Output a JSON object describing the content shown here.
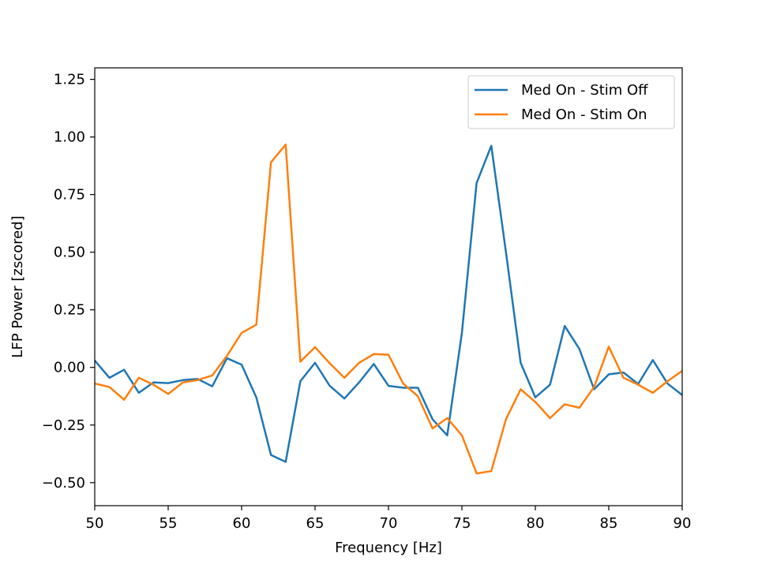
{
  "chart_data": {
    "type": "line",
    "xlabel": "Frequency [Hz]",
    "ylabel": "LFP Power [zscored]",
    "xlim": [
      50,
      90
    ],
    "ylim": [
      -0.6,
      1.3
    ],
    "grid": false,
    "legend_position": "top-right",
    "x": [
      50,
      51,
      52,
      53,
      54,
      55,
      56,
      57,
      58,
      59,
      60,
      61,
      62,
      63,
      64,
      65,
      66,
      67,
      68,
      69,
      70,
      71,
      72,
      73,
      74,
      75,
      76,
      77,
      78,
      79,
      80,
      81,
      82,
      83,
      84,
      85,
      86,
      87,
      88,
      89,
      90
    ],
    "xticks": [
      "50",
      "55",
      "60",
      "65",
      "70",
      "75",
      "80",
      "85",
      "90"
    ],
    "yticks": [
      "−0.50",
      "−0.25",
      "0.00",
      "0.25",
      "0.50",
      "0.75",
      "1.00",
      "1.25"
    ],
    "series": [
      {
        "name": "Med On - Stim Off",
        "color": "#1f77b4",
        "values": [
          0.03,
          -0.045,
          -0.01,
          -0.11,
          -0.065,
          -0.068,
          -0.055,
          -0.05,
          -0.082,
          0.04,
          0.012,
          -0.13,
          -0.38,
          -0.41,
          -0.06,
          0.02,
          -0.08,
          -0.135,
          -0.065,
          0.015,
          -0.08,
          -0.088,
          -0.088,
          -0.225,
          -0.295,
          0.15,
          0.8,
          0.962,
          0.5,
          0.02,
          -0.13,
          -0.075,
          0.18,
          0.08,
          -0.095,
          -0.03,
          -0.022,
          -0.072,
          0.032,
          -0.07,
          -0.12
        ]
      },
      {
        "name": "Med On - Stim On",
        "color": "#ff7f0e",
        "values": [
          -0.07,
          -0.085,
          -0.14,
          -0.045,
          -0.075,
          -0.115,
          -0.065,
          -0.055,
          -0.035,
          0.05,
          0.15,
          0.185,
          0.89,
          0.967,
          0.025,
          0.088,
          0.018,
          -0.045,
          0.02,
          0.058,
          0.055,
          -0.07,
          -0.125,
          -0.265,
          -0.22,
          -0.295,
          -0.46,
          -0.45,
          -0.225,
          -0.095,
          -0.15,
          -0.22,
          -0.16,
          -0.175,
          -0.085,
          0.09,
          -0.045,
          -0.075,
          -0.11,
          -0.06,
          -0.015
        ]
      }
    ]
  }
}
